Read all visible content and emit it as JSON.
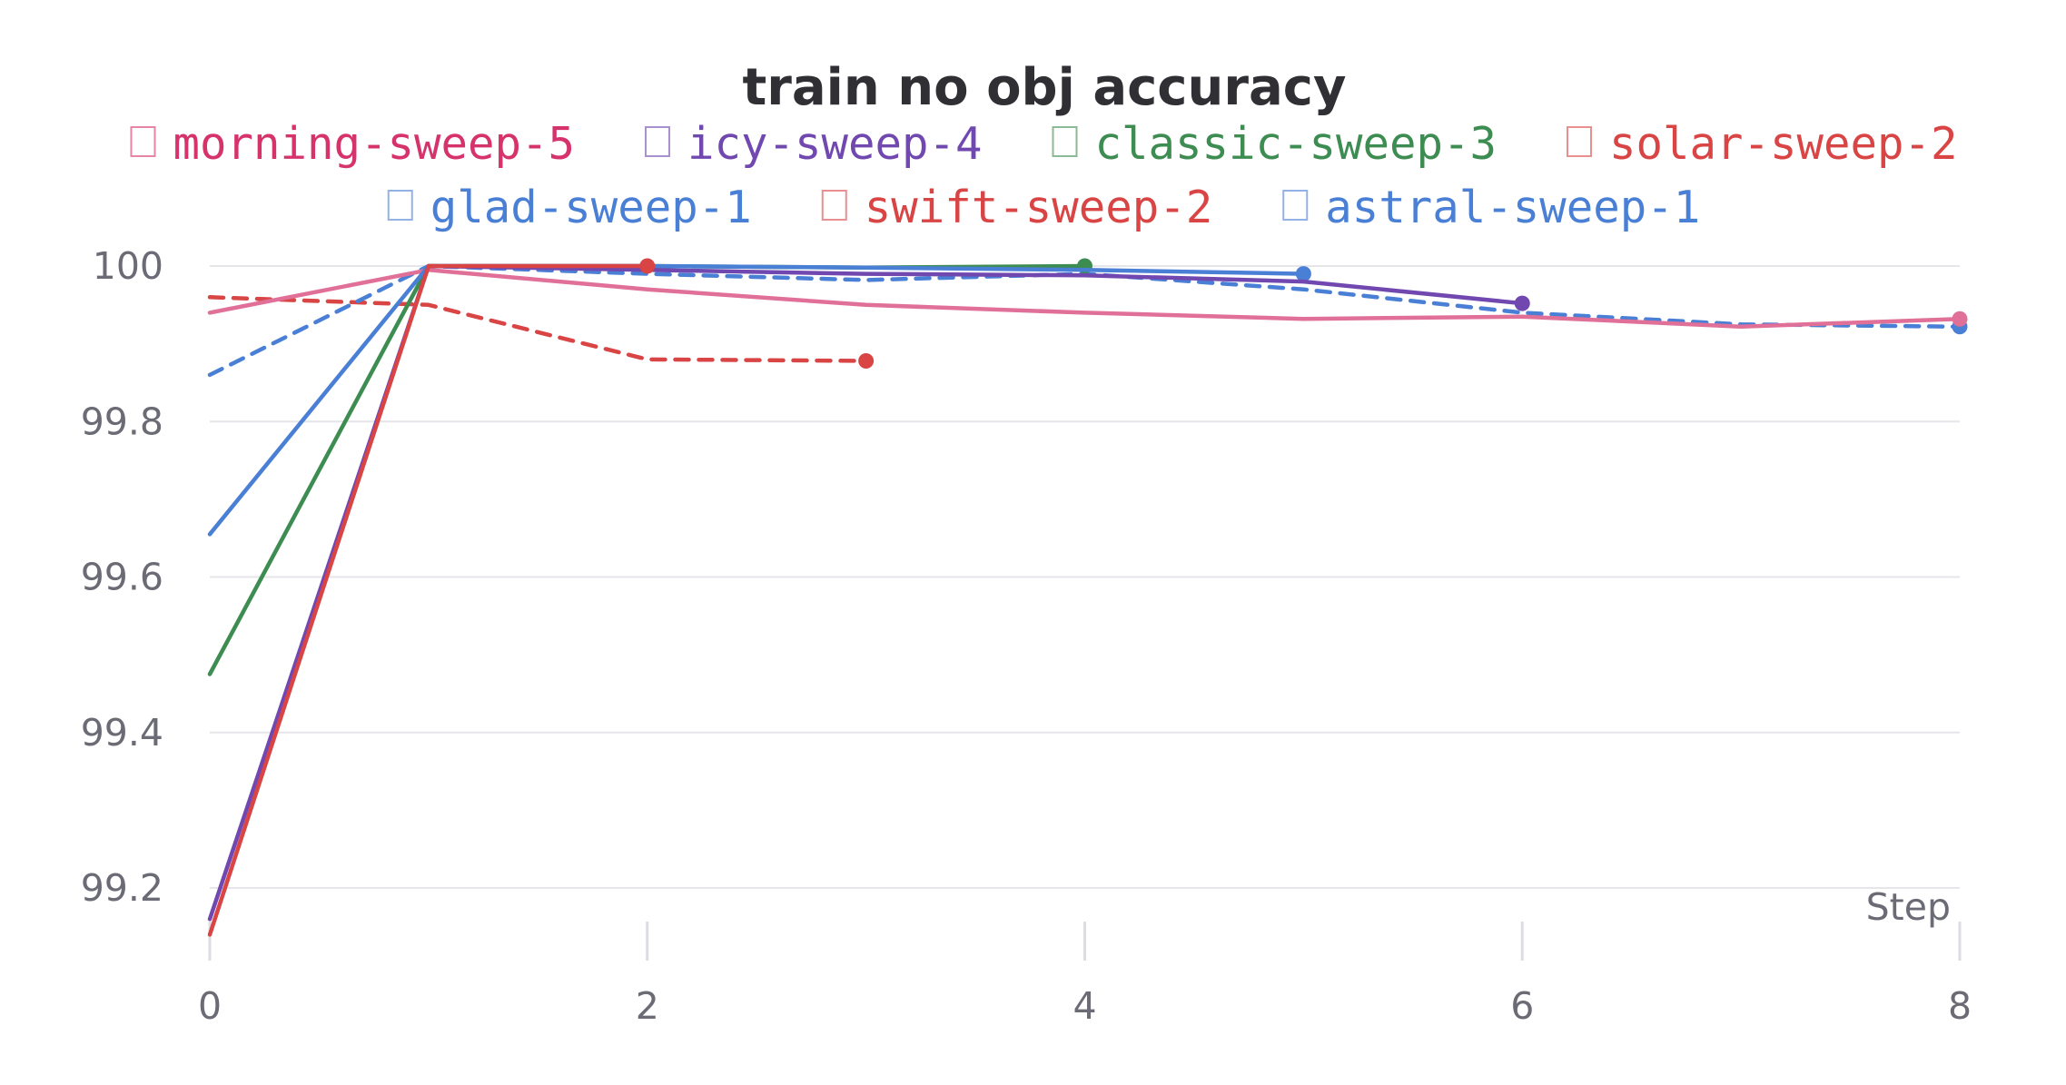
{
  "chart_data": {
    "type": "line",
    "title": "train no obj accuracy",
    "xlabel": "Step",
    "ylabel": "",
    "xlim": [
      0,
      8
    ],
    "ylim": [
      99.12,
      100.05
    ],
    "x_ticks": [
      0,
      2,
      4,
      6,
      8
    ],
    "y_ticks": [
      99.2,
      99.4,
      99.6,
      99.8,
      100
    ],
    "y_tick_labels": [
      "99.2",
      "99.4",
      "99.6",
      "99.8",
      "100"
    ],
    "grid": true,
    "legend_position": "top",
    "series": [
      {
        "name": "morning-sweep-5",
        "color": "#e07098",
        "legend_color": "#d6336c",
        "dash": false,
        "x": [
          0,
          1,
          2,
          3,
          4,
          5,
          6,
          7,
          8
        ],
        "y": [
          99.94,
          99.995,
          99.97,
          99.95,
          99.94,
          99.932,
          99.935,
          99.922,
          99.932
        ]
      },
      {
        "name": "icy-sweep-4",
        "color": "#7048b0",
        "legend_color": "#7048b0",
        "dash": false,
        "x": [
          0,
          1,
          2,
          3,
          4,
          5,
          6
        ],
        "y": [
          99.16,
          100.0,
          99.995,
          99.99,
          99.988,
          99.98,
          99.952
        ]
      },
      {
        "name": "classic-sweep-3",
        "color": "#3d8c52",
        "legend_color": "#3d8c52",
        "dash": false,
        "x": [
          0,
          1,
          2,
          3,
          4
        ],
        "y": [
          99.475,
          100.0,
          100.0,
          99.998,
          100.0
        ]
      },
      {
        "name": "solar-sweep-2",
        "color": "#d94444",
        "legend_color": "#d94444",
        "dash": false,
        "x": [
          0,
          1,
          2
        ],
        "y": [
          99.14,
          100.0,
          100.0
        ]
      },
      {
        "name": "glad-sweep-1",
        "color": "#4a7fd6",
        "legend_color": "#4a7fd6",
        "dash": false,
        "x": [
          0,
          1,
          2,
          3,
          4,
          5
        ],
        "y": [
          99.655,
          100.0,
          100.0,
          99.998,
          99.995,
          99.99
        ]
      },
      {
        "name": "swift-sweep-2",
        "color": "#d94444",
        "legend_color": "#d94444",
        "dash": true,
        "x": [
          0,
          1,
          2,
          3
        ],
        "y": [
          99.96,
          99.95,
          99.88,
          99.878
        ]
      },
      {
        "name": "astral-sweep-1",
        "color": "#4a7fd6",
        "legend_color": "#4a7fd6",
        "dash": true,
        "x": [
          0,
          1,
          2,
          3,
          4,
          5,
          6,
          7,
          8
        ],
        "y": [
          99.86,
          100.0,
          99.99,
          99.982,
          99.99,
          99.97,
          99.94,
          99.925,
          99.922
        ]
      }
    ]
  }
}
